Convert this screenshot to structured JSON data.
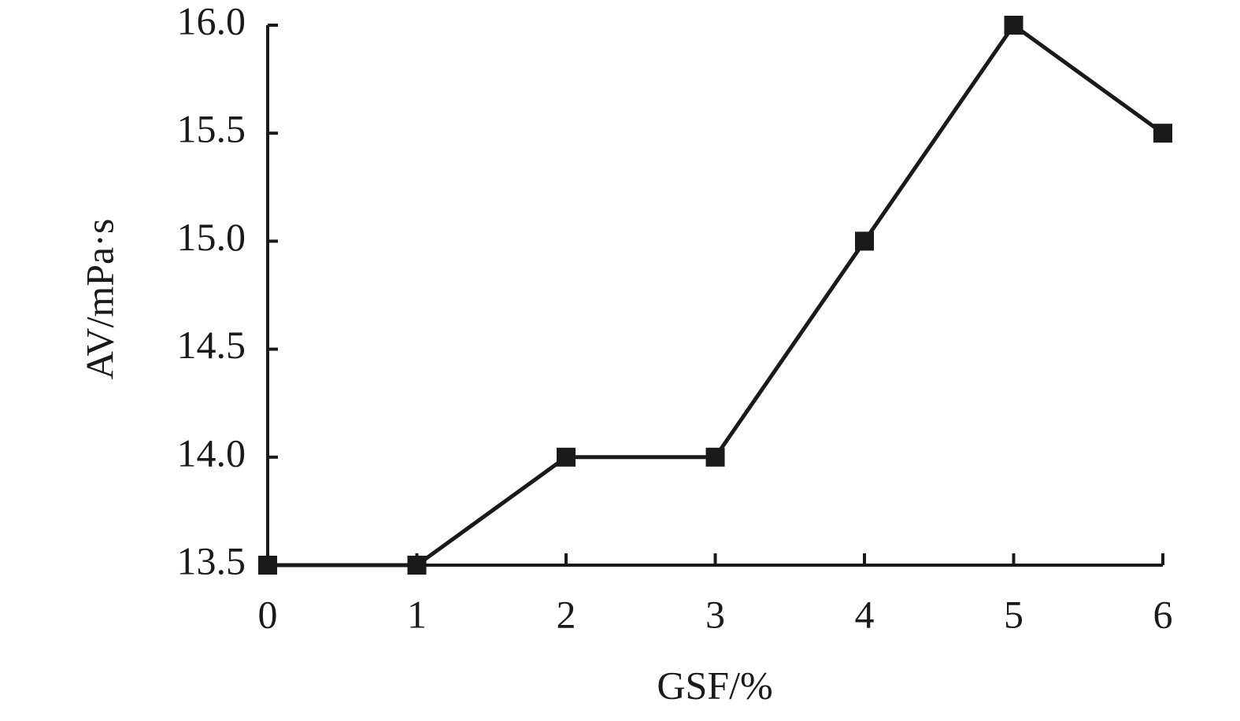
{
  "chart_data": {
    "type": "line",
    "x_label": "GSF/%",
    "y_label": "AV/mPa·s",
    "x": [
      0,
      1,
      2,
      3,
      4,
      5,
      6
    ],
    "series": [
      {
        "color": "#1a1a1a",
        "values": [
          13.5,
          13.5,
          14.0,
          14.0,
          15.0,
          16.0,
          15.5
        ]
      }
    ],
    "xlim": [
      0,
      6
    ],
    "xticks": [
      0,
      1,
      2,
      3,
      4,
      5,
      6
    ],
    "ylim": [
      13.5,
      16.0
    ],
    "yticks": [
      13.5,
      {
        "value": 14,
        "label": "14.0"
      },
      14.5,
      {
        "value": 15,
        "label": "15.0"
      },
      15.5,
      {
        "value": 16,
        "label": "16.0"
      }
    ],
    "grid": false
  }
}
